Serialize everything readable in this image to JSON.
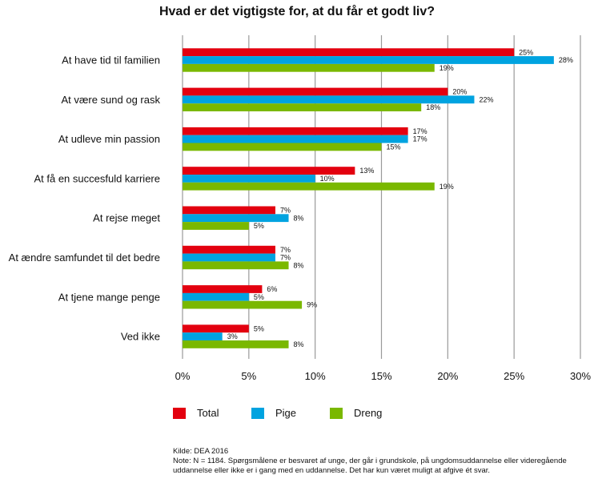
{
  "chart_data": {
    "type": "bar",
    "orientation": "horizontal",
    "title": "Hvad er det vigtigste for, at du får et godt liv?",
    "categories": [
      "At have tid til familien",
      "At være sund og rask",
      "At udleve min passion",
      "At få en succesfuld karriere",
      "At rejse meget",
      "At ændre samfundet til det bedre",
      "At tjene mange penge",
      "Ved ikke"
    ],
    "series": [
      {
        "name": "Total",
        "color": "#e3000f",
        "values": [
          25,
          20,
          17,
          13,
          7,
          7,
          6,
          5
        ]
      },
      {
        "name": "Pige",
        "color": "#00a3e0",
        "values": [
          28,
          22,
          17,
          10,
          8,
          7,
          5,
          3
        ]
      },
      {
        "name": "Dreng",
        "color": "#7ab800",
        "values": [
          19,
          18,
          15,
          19,
          5,
          8,
          9,
          8
        ]
      }
    ],
    "xlim": [
      0,
      30
    ],
    "xticks": [
      "0%",
      "5%",
      "10%",
      "15%",
      "20%",
      "25%",
      "30%"
    ],
    "grid": true,
    "legend_position": "bottom"
  },
  "footer": {
    "source": "Kilde: DEA 2016",
    "note_line1": "Note: N = 1184. Spørgsmålene er besvaret af unge, der går i grundskole, på ungdomsuddannelse eller videregående",
    "note_line2": "uddannelse eller ikke er i gang med en uddannelse. Det har kun været muligt at afgive ét svar."
  }
}
